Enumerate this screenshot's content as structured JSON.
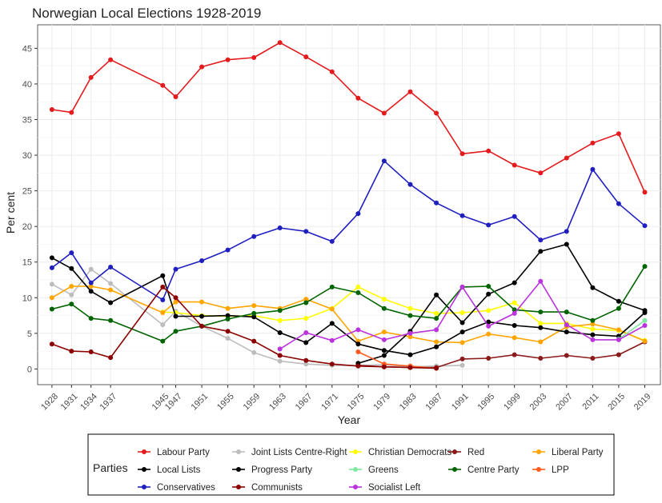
{
  "chart_data": {
    "type": "line",
    "title": "Norwegian Local Elections 1928-2019",
    "xlabel": "Year",
    "ylabel": "Per cent",
    "xlim": [
      1925.8,
      2021.4
    ],
    "ylim": [
      -2.2,
      48.3
    ],
    "x_ticks": [
      1928,
      1931,
      1934,
      1937,
      1945,
      1947,
      1951,
      1955,
      1959,
      1963,
      1967,
      1971,
      1975,
      1979,
      1983,
      1987,
      1991,
      1995,
      1999,
      2003,
      2007,
      2011,
      2015,
      2019
    ],
    "y_ticks": [
      0,
      5,
      10,
      15,
      20,
      25,
      30,
      35,
      40,
      45
    ],
    "grid": true,
    "legend_title": "Parties",
    "legend_position": "bottom",
    "series": [
      {
        "name": "Labour Party",
        "color": "#e41a1c",
        "x": [
          1928,
          1931,
          1934,
          1937,
          1945,
          1947,
          1951,
          1955,
          1959,
          1963,
          1967,
          1971,
          1975,
          1979,
          1983,
          1987,
          1991,
          1995,
          1999,
          2003,
          2007,
          2011,
          2015,
          2019
        ],
        "y": [
          36.4,
          36.0,
          40.9,
          43.4,
          39.8,
          38.2,
          42.4,
          43.4,
          43.7,
          45.8,
          43.8,
          41.7,
          38.0,
          35.9,
          38.9,
          35.9,
          30.2,
          30.6,
          28.6,
          27.5,
          29.6,
          31.7,
          33.0,
          24.8
        ]
      },
      {
        "name": "Joint Lists Centre-Right",
        "color": "#bdbdbd",
        "x": [
          1928,
          1931,
          1934,
          1937,
          1945,
          1947,
          1951,
          1955,
          1959,
          1963,
          1967,
          1971,
          1975,
          1979,
          1983,
          1987,
          1991
        ],
        "y": [
          11.9,
          10.4,
          14.0,
          12.0,
          6.2,
          8.1,
          6.0,
          4.3,
          2.3,
          1.1,
          0.7,
          0.5,
          0.5,
          0.6,
          0.3,
          0.4,
          0.5
        ]
      },
      {
        "name": "Christian Democrats",
        "color": "#ffff00",
        "x": [
          1945,
          1947,
          1951,
          1955,
          1959,
          1963,
          1967,
          1971,
          1975,
          1979,
          1983,
          1987,
          1991,
          1995,
          1999,
          2003,
          2007,
          2011,
          2015,
          2019
        ],
        "y": [
          8.0,
          7.9,
          7.5,
          7.4,
          7.5,
          6.8,
          7.1,
          8.5,
          11.5,
          9.8,
          8.5,
          7.8,
          7.9,
          8.2,
          9.3,
          6.4,
          6.4,
          5.6,
          5.4,
          4.0
        ]
      },
      {
        "name": "Red",
        "color": "#8b1a1a",
        "x": [
          1975,
          1979,
          1983,
          1987,
          1991,
          1995,
          1999,
          2003,
          2007,
          2011,
          2015,
          2019
        ],
        "y": [
          0.5,
          0.3,
          0.2,
          0.2,
          1.4,
          1.5,
          2.0,
          1.5,
          1.9,
          1.5,
          2.0,
          3.8
        ]
      },
      {
        "name": "Liberal Party",
        "color": "#ffa500",
        "x": [
          1928,
          1931,
          1934,
          1937,
          1945,
          1947,
          1951,
          1955,
          1959,
          1963,
          1967,
          1971,
          1975,
          1979,
          1983,
          1987,
          1991,
          1995,
          1999,
          2003,
          2007,
          2011,
          2015,
          2019
        ],
        "y": [
          10.0,
          11.6,
          11.6,
          11.1,
          7.9,
          9.4,
          9.4,
          8.5,
          8.9,
          8.5,
          9.8,
          8.4,
          3.9,
          5.2,
          4.5,
          3.8,
          3.7,
          4.9,
          4.4,
          3.8,
          5.9,
          6.3,
          5.5,
          3.9
        ]
      },
      {
        "name": "Local Lists",
        "color": "#000000",
        "x": [
          1928,
          1931,
          1934,
          1937,
          1945,
          1947,
          1951,
          1955,
          1959,
          1963,
          1967,
          1971,
          1975,
          1979,
          1983,
          1987,
          1991,
          1995,
          1999,
          2003,
          2007,
          2011,
          2015,
          2019
        ],
        "y": [
          15.6,
          14.1,
          10.9,
          9.3,
          13.1,
          7.4,
          7.4,
          7.5,
          7.3,
          5.1,
          3.7,
          6.4,
          3.5,
          2.6,
          2.0,
          3.1,
          5.2,
          6.6,
          6.1,
          5.8,
          5.2,
          4.8,
          4.6,
          7.9
        ]
      },
      {
        "name": "Progress Party",
        "color": "#000000",
        "x": [
          1975,
          1979,
          1983,
          1987,
          1991,
          1995,
          1999,
          2003,
          2007,
          2011,
          2015,
          2019
        ],
        "y": [
          0.8,
          1.9,
          5.3,
          10.4,
          6.5,
          10.5,
          12.1,
          16.5,
          17.5,
          11.4,
          9.5,
          8.2
        ]
      },
      {
        "name": "Greens",
        "color": "#7fe8a0",
        "x": [
          2015,
          2019
        ],
        "y": [
          4.2,
          6.8
        ]
      },
      {
        "name": "Centre Party",
        "color": "#006400",
        "x": [
          1928,
          1931,
          1934,
          1937,
          1945,
          1947,
          1951,
          1955,
          1959,
          1963,
          1967,
          1971,
          1975,
          1979,
          1983,
          1987,
          1991,
          1995,
          1999,
          2003,
          2007,
          2011,
          2015,
          2019
        ],
        "y": [
          8.4,
          9.1,
          7.1,
          6.8,
          3.9,
          5.3,
          6.0,
          7.0,
          7.8,
          8.2,
          9.3,
          11.5,
          10.7,
          8.5,
          7.5,
          7.1,
          11.5,
          11.6,
          8.3,
          8.0,
          8.0,
          6.8,
          8.5,
          14.4
        ]
      },
      {
        "name": "LPP",
        "color": "#ff5a1f",
        "x": [
          1975,
          1979,
          1983,
          1987
        ],
        "y": [
          2.4,
          0.7,
          0.4,
          0.1
        ]
      },
      {
        "name": "Conservatives",
        "color": "#1f1fbf",
        "x": [
          1928,
          1931,
          1934,
          1937,
          1945,
          1947,
          1951,
          1955,
          1959,
          1963,
          1967,
          1971,
          1975,
          1979,
          1983,
          1987,
          1991,
          1995,
          1999,
          2003,
          2007,
          2011,
          2015,
          2019
        ],
        "y": [
          14.2,
          16.3,
          12.1,
          14.3,
          9.7,
          14.0,
          15.2,
          16.7,
          18.6,
          19.8,
          19.3,
          17.9,
          21.8,
          29.2,
          25.9,
          23.3,
          21.5,
          20.2,
          21.4,
          18.1,
          19.3,
          28.0,
          23.2,
          20.1
        ]
      },
      {
        "name": "Communists",
        "color": "#8b0000",
        "x": [
          1928,
          1931,
          1934,
          1937,
          1945,
          1947,
          1951,
          1955,
          1959,
          1963,
          1967,
          1971,
          1975,
          1979,
          1983,
          1987
        ],
        "y": [
          3.5,
          2.5,
          2.4,
          1.6,
          11.5,
          10.0,
          6.0,
          5.3,
          3.9,
          1.9,
          1.2,
          0.7,
          0.4,
          0.3,
          0.2,
          0.1
        ]
      },
      {
        "name": "Socialist Left",
        "color": "#bb33dd",
        "x": [
          1963,
          1967,
          1971,
          1975,
          1979,
          1983,
          1987,
          1991,
          1995,
          1999,
          2003,
          2007,
          2011,
          2015,
          2019
        ],
        "y": [
          2.8,
          5.1,
          4.0,
          5.5,
          4.1,
          5.0,
          5.5,
          11.5,
          6.0,
          7.8,
          12.3,
          6.2,
          4.1,
          4.1,
          6.1
        ]
      }
    ]
  }
}
